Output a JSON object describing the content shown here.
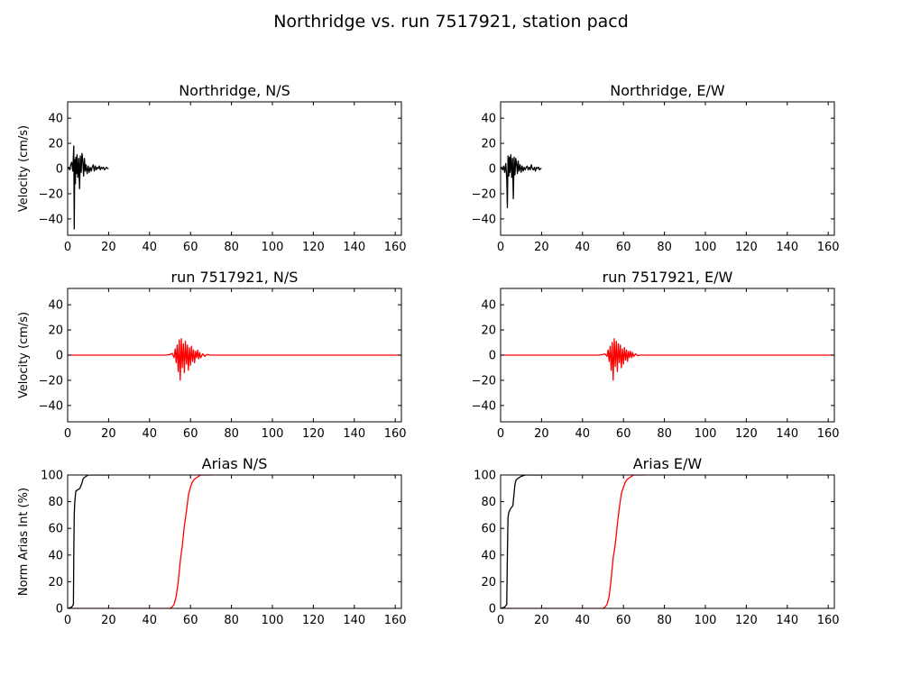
{
  "figure_title": "Northridge vs. run 7517921, station pacd",
  "colors": {
    "observed": "#000000",
    "synthetic": "#ff0000",
    "axes": "#000000",
    "background": "#ffffff"
  },
  "chart_data": [
    {
      "type": "line",
      "title": "Northridge, N/S",
      "xlabel": "",
      "ylabel": "Velocity (cm/s)",
      "xlim": [
        0,
        163
      ],
      "ylim": [
        -53,
        53
      ],
      "xticks": [
        0,
        20,
        40,
        60,
        80,
        100,
        120,
        140,
        160
      ],
      "yticks": [
        -40,
        -20,
        0,
        20,
        40
      ],
      "grid": false,
      "series": [
        {
          "color": "#000000",
          "x": [
            0,
            0.5,
            1,
            1.5,
            2,
            2.5,
            3,
            3.2,
            3.5,
            3.8,
            4,
            4.3,
            4.6,
            5,
            5.4,
            5.8,
            6.2,
            6.6,
            7,
            7.4,
            7.8,
            8.2,
            8.6,
            9,
            9.5,
            10,
            10.5,
            11,
            11.5,
            12,
            12.5,
            13,
            13.5,
            14,
            14.5,
            15,
            15.5,
            16,
            16.5,
            17,
            17.5,
            18,
            18.5,
            19,
            19.5,
            20
          ],
          "y": [
            0,
            1,
            -1,
            3,
            5,
            -2,
            18,
            -48,
            7,
            -12,
            9,
            -4,
            11,
            -7,
            8,
            -16,
            10,
            -3,
            12,
            6,
            -6,
            8,
            -2,
            3,
            -4,
            2,
            -3,
            1,
            -2,
            1,
            3,
            -2,
            2,
            -1,
            1,
            0,
            2,
            -1,
            1,
            0,
            1,
            -1,
            0,
            1,
            0,
            0
          ]
        }
      ]
    },
    {
      "type": "line",
      "title": "Northridge, E/W",
      "xlabel": "",
      "ylabel": "",
      "xlim": [
        0,
        163
      ],
      "ylim": [
        -53,
        53
      ],
      "xticks": [
        0,
        20,
        40,
        60,
        80,
        100,
        120,
        140,
        160
      ],
      "yticks": [
        -40,
        -20,
        0,
        20,
        40
      ],
      "grid": false,
      "series": [
        {
          "color": "#000000",
          "x": [
            0,
            0.5,
            1,
            1.5,
            2,
            2.5,
            3,
            3.3,
            3.6,
            4,
            4.3,
            4.6,
            5,
            5.4,
            5.8,
            6.2,
            6.6,
            7,
            7.4,
            7.8,
            8.2,
            8.6,
            9,
            9.5,
            10,
            10.5,
            11,
            11.5,
            12,
            12.5,
            13,
            13.5,
            14,
            14.5,
            15,
            15.5,
            16,
            16.5,
            17,
            17.5,
            18,
            18.5,
            19,
            19.5,
            20
          ],
          "y": [
            0,
            1,
            -1,
            2,
            -3,
            4,
            -8,
            -31,
            10,
            -6,
            9,
            -3,
            11,
            -7,
            8,
            -24,
            9,
            -5,
            8,
            4,
            -4,
            6,
            -2,
            3,
            -3,
            2,
            -2,
            1,
            -1,
            1,
            2,
            -1,
            1,
            -1,
            3,
            0,
            -1,
            1,
            -2,
            1,
            0,
            1,
            -1,
            0,
            0
          ]
        }
      ]
    },
    {
      "type": "line",
      "title": "run 7517921, N/S",
      "xlabel": "",
      "ylabel": "Velocity (cm/s)",
      "xlim": [
        0,
        163
      ],
      "ylim": [
        -53,
        53
      ],
      "xticks": [
        0,
        20,
        40,
        60,
        80,
        100,
        120,
        140,
        160
      ],
      "yticks": [
        -40,
        -20,
        0,
        20,
        40
      ],
      "grid": false,
      "series": [
        {
          "color": "#ff0000",
          "x": [
            0,
            10,
            20,
            30,
            40,
            46,
            48,
            50,
            51,
            52,
            52.5,
            53,
            53.5,
            54,
            54.5,
            55,
            55.5,
            56,
            56.5,
            57,
            57.5,
            58,
            58.5,
            59,
            59.5,
            60,
            60.5,
            61,
            61.5,
            62,
            62.5,
            63,
            63.5,
            64,
            64.5,
            65,
            66,
            67,
            68,
            70,
            80,
            100,
            120,
            140,
            160,
            163
          ],
          "y": [
            0,
            0,
            0,
            0,
            0,
            0,
            0,
            0.5,
            1.5,
            -2,
            5,
            -6,
            8,
            -13,
            12,
            -20,
            13,
            -10,
            9,
            -14,
            11,
            -7,
            8,
            -12,
            6,
            -8,
            7,
            -5,
            4,
            -6,
            3,
            -2,
            4,
            -3,
            2,
            -2,
            1,
            -1,
            0.5,
            0,
            0,
            0,
            0,
            0,
            0,
            0
          ]
        }
      ]
    },
    {
      "type": "line",
      "title": "run 7517921, E/W",
      "xlabel": "",
      "ylabel": "",
      "xlim": [
        0,
        163
      ],
      "ylim": [
        -53,
        53
      ],
      "xticks": [
        0,
        20,
        40,
        60,
        80,
        100,
        120,
        140,
        160
      ],
      "yticks": [
        -40,
        -20,
        0,
        20,
        40
      ],
      "grid": false,
      "series": [
        {
          "color": "#ff0000",
          "x": [
            0,
            10,
            20,
            30,
            40,
            46,
            48,
            50,
            51,
            52,
            52.5,
            53,
            53.5,
            54,
            54.5,
            55,
            55.5,
            56,
            56.5,
            57,
            57.5,
            58,
            58.5,
            59,
            59.5,
            60,
            60.5,
            61,
            61.5,
            62,
            62.5,
            63,
            63.5,
            64,
            64.5,
            65,
            66,
            67,
            68,
            70,
            80,
            100,
            120,
            140,
            160,
            163
          ],
          "y": [
            0,
            0,
            0,
            0,
            0,
            0,
            0,
            0.5,
            1,
            -1,
            4,
            -5,
            7,
            -12,
            10,
            -20,
            13,
            -9,
            11,
            -13,
            9,
            -6,
            8,
            -10,
            5,
            -7,
            6,
            -4,
            4,
            -5,
            3,
            -2,
            3,
            -2,
            2,
            -1,
            1,
            -0.5,
            0,
            0,
            0,
            0,
            0,
            0,
            0,
            0
          ]
        }
      ]
    },
    {
      "type": "line",
      "title": "Arias N/S",
      "xlabel": "",
      "ylabel": "Norm Arias Int (%)",
      "xlim": [
        0,
        163
      ],
      "ylim": [
        0,
        100
      ],
      "xticks": [
        0,
        20,
        40,
        60,
        80,
        100,
        120,
        140,
        160
      ],
      "yticks": [
        0,
        20,
        40,
        60,
        80,
        100
      ],
      "grid": false,
      "series": [
        {
          "color": "#000000",
          "x": [
            0,
            2,
            2.8,
            3,
            3.2,
            3.5,
            4,
            5,
            6,
            7,
            7.5,
            8,
            9,
            10,
            12,
            15,
            20
          ],
          "y": [
            0,
            1,
            3,
            40,
            70,
            80,
            88,
            89,
            90,
            94,
            97,
            98,
            99,
            100,
            100,
            100,
            100
          ]
        },
        {
          "color": "#ff0000",
          "x": [
            0,
            20,
            40,
            50,
            51,
            52,
            53,
            54,
            55,
            56,
            57,
            58,
            59,
            60,
            61,
            62,
            63,
            64,
            65,
            66,
            68,
            70
          ],
          "y": [
            0,
            0,
            0,
            0,
            1,
            3,
            9,
            20,
            35,
            47,
            62,
            73,
            85,
            91,
            95,
            97,
            98,
            99,
            100,
            100,
            100,
            100
          ]
        }
      ]
    },
    {
      "type": "line",
      "title": "Arias E/W",
      "xlabel": "",
      "ylabel": "",
      "xlim": [
        0,
        163
      ],
      "ylim": [
        0,
        100
      ],
      "xticks": [
        0,
        20,
        40,
        60,
        80,
        100,
        120,
        140,
        160
      ],
      "yticks": [
        0,
        20,
        40,
        60,
        80,
        100
      ],
      "grid": false,
      "series": [
        {
          "color": "#000000",
          "x": [
            0,
            2,
            3,
            3.3,
            3.6,
            4,
            5,
            6,
            7,
            7.5,
            8,
            9,
            10,
            12,
            15,
            20
          ],
          "y": [
            0,
            1,
            3,
            40,
            68,
            72,
            75,
            77,
            93,
            96,
            97,
            98,
            99,
            100,
            100,
            100
          ]
        },
        {
          "color": "#ff0000",
          "x": [
            0,
            20,
            40,
            50,
            51,
            52,
            53,
            54,
            55,
            56,
            57,
            58,
            59,
            60,
            61,
            62,
            63,
            64,
            65,
            66,
            68,
            70
          ],
          "y": [
            0,
            0,
            0,
            0,
            1,
            3,
            9,
            22,
            38,
            48,
            63,
            76,
            86,
            91,
            95,
            97,
            98,
            99,
            100,
            100,
            100,
            100
          ]
        }
      ]
    }
  ]
}
